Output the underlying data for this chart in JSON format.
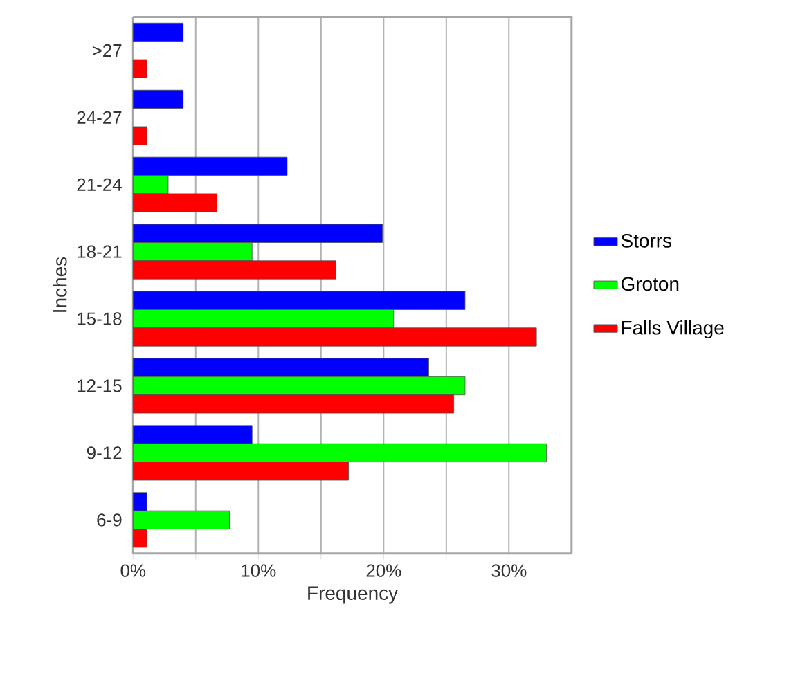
{
  "chart_data": {
    "type": "bar",
    "orientation": "horizontal",
    "xlabel": "Frequency",
    "ylabel": "Inches",
    "categories": [
      ">27",
      "24-27",
      "21-24",
      "18-21",
      "15-18",
      "12-15",
      "9-12",
      "6-9"
    ],
    "series": [
      {
        "name": "Storrs",
        "color": "#0000ff",
        "values": [
          4.0,
          4.0,
          12.3,
          19.9,
          26.5,
          23.6,
          9.5,
          1.1
        ]
      },
      {
        "name": "Groton",
        "color": "#00ff00",
        "values": [
          null,
          null,
          2.8,
          9.5,
          20.8,
          26.5,
          33.0,
          7.7
        ]
      },
      {
        "name": "Falls Village",
        "color": "#ff0000",
        "values": [
          1.1,
          1.1,
          6.7,
          16.2,
          32.2,
          25.6,
          17.2,
          1.1
        ]
      }
    ],
    "xlim": [
      0,
      35
    ],
    "xticks": [
      {
        "value": 0,
        "label": "0%"
      },
      {
        "value": 5,
        "label": null
      },
      {
        "value": 10,
        "label": "10%"
      },
      {
        "value": 15,
        "label": null
      },
      {
        "value": 20,
        "label": "20%"
      },
      {
        "value": 25,
        "label": null
      },
      {
        "value": 30,
        "label": "30%"
      }
    ],
    "grid": "x",
    "legend": "right"
  }
}
